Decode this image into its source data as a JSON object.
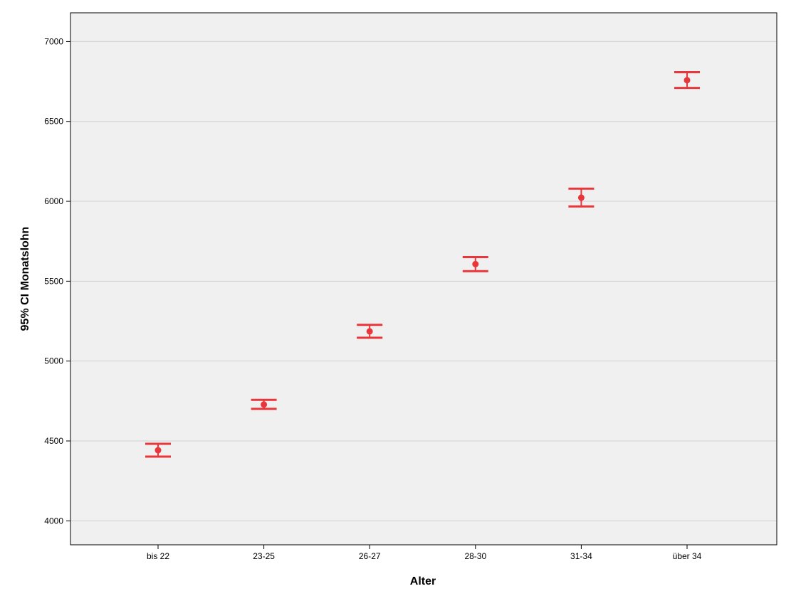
{
  "chart_data": {
    "type": "errorbar",
    "title": "",
    "xlabel": "Alter",
    "ylabel": "95% CI Monatslohn",
    "categories": [
      "bis 22",
      "23-25",
      "26-27",
      "28-30",
      "31-34",
      "über 34"
    ],
    "series": [
      {
        "mean": [
          4442,
          4728,
          5186,
          5607,
          6023,
          6758
        ],
        "lower": [
          4402,
          4701,
          5146,
          5563,
          5968,
          6710
        ],
        "upper": [
          4482,
          4757,
          5227,
          5651,
          6079,
          6808
        ]
      }
    ],
    "ylim": [
      3850,
      7180
    ],
    "yticks": [
      4000,
      4500,
      5000,
      5500,
      6000,
      6500,
      7000
    ],
    "grid": true,
    "legend": "none",
    "colors": {
      "marker": "#e8363a",
      "plot_background": "#f0f0f0",
      "grid": "#d0d0d0",
      "axis": "#000000"
    }
  }
}
